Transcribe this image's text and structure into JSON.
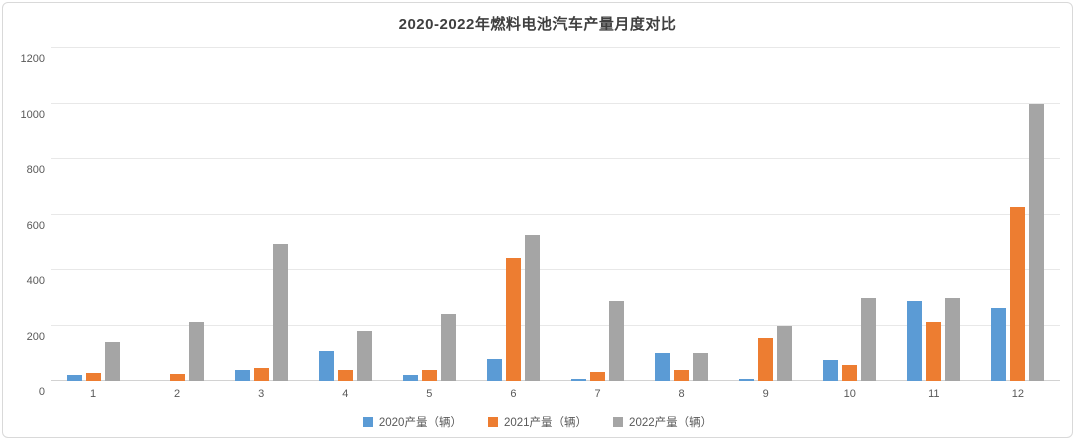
{
  "chart_data": {
    "type": "bar",
    "title": "2020-2022年燃料电池汽车产量月度对比",
    "categories": [
      "1",
      "2",
      "3",
      "4",
      "5",
      "6",
      "7",
      "8",
      "9",
      "10",
      "11",
      "12"
    ],
    "series": [
      {
        "name": "2020产量（辆）",
        "color": "#5B9BD5",
        "values": [
          20,
          0,
          40,
          108,
          20,
          80,
          8,
          100,
          8,
          75,
          288,
          263
        ]
      },
      {
        "name": "2021产量（辆）",
        "color": "#ED7D31",
        "values": [
          30,
          27,
          47,
          40,
          40,
          443,
          33,
          40,
          155,
          57,
          212,
          627
        ]
      },
      {
        "name": "2022产量（辆）",
        "color": "#A5A5A5",
        "values": [
          142,
          212,
          495,
          180,
          243,
          527,
          290,
          100,
          200,
          300,
          300,
          1000
        ]
      }
    ],
    "xlabel": "",
    "ylabel": "",
    "ylim": [
      0,
      1200
    ],
    "y_ticks": [
      0,
      200,
      400,
      600,
      800,
      1000,
      1200
    ],
    "grid": true,
    "legend_position": "bottom"
  },
  "colors": {
    "grid": "#e8e8e8",
    "baseline": "#d2d2d2",
    "tick_text": "#595959",
    "title_text": "#3f3f3f",
    "card_border": "#d9d9d9"
  }
}
